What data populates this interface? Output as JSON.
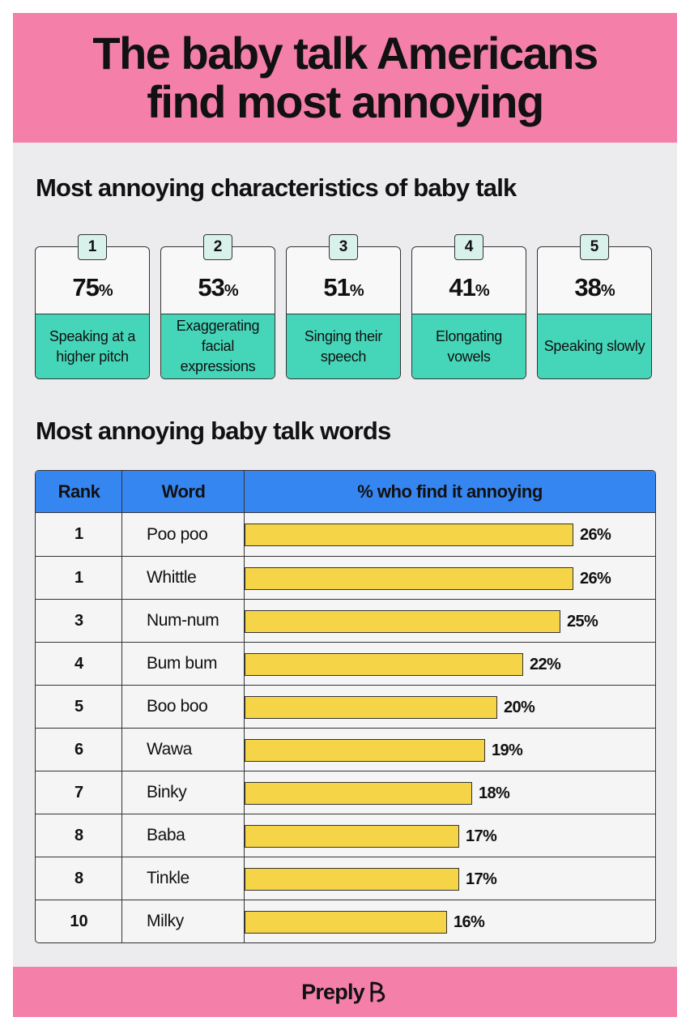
{
  "title_line1": "The baby talk Americans",
  "title_line2": "find most annoying",
  "section1_title": "Most annoying characteristics of baby talk",
  "characteristics": [
    {
      "rank": "1",
      "value": "75",
      "unit": "%",
      "label": "Speaking at a higher pitch"
    },
    {
      "rank": "2",
      "value": "53",
      "unit": "%",
      "label": "Exaggerating facial expressions"
    },
    {
      "rank": "3",
      "value": "51",
      "unit": "%",
      "label": "Singing their speech"
    },
    {
      "rank": "4",
      "value": "41",
      "unit": "%",
      "label": "Elongating vowels"
    },
    {
      "rank": "5",
      "value": "38",
      "unit": "%",
      "label": "Speaking slowly"
    }
  ],
  "section2_title": "Most annoying baby talk words",
  "table_headers": {
    "rank": "Rank",
    "word": "Word",
    "percent": "% who find it annoying"
  },
  "chart_data": {
    "type": "bar",
    "orientation": "horizontal",
    "categories": [
      "Poo poo",
      "Whittle",
      "Num-num",
      "Bum bum",
      "Boo boo",
      "Wawa",
      "Binky",
      "Baba",
      "Tinkle",
      "Milky"
    ],
    "ranks": [
      "1",
      "1",
      "3",
      "4",
      "5",
      "6",
      "7",
      "8",
      "8",
      "10"
    ],
    "values": [
      26,
      26,
      25,
      22,
      20,
      19,
      18,
      17,
      17,
      16
    ],
    "value_labels": [
      "26%",
      "26%",
      "25%",
      "22%",
      "20%",
      "19%",
      "18%",
      "17%",
      "17%",
      "16%"
    ],
    "bar_color": "#f5d547"
  },
  "footer": {
    "brand": "Preply"
  },
  "colors": {
    "header_pink": "#f47fa9",
    "card_teal": "#45d6b9",
    "badge_mint": "#d8f1ea",
    "table_header_blue": "#3686f2",
    "background": "#ececef"
  }
}
